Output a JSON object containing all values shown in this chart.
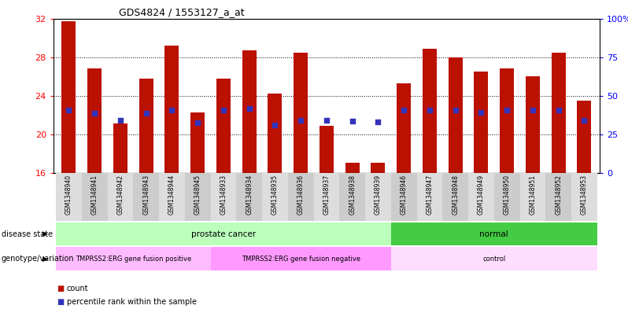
{
  "title": "GDS4824 / 1553127_a_at",
  "samples": [
    "GSM1348940",
    "GSM1348941",
    "GSM1348942",
    "GSM1348943",
    "GSM1348944",
    "GSM1348945",
    "GSM1348933",
    "GSM1348934",
    "GSM1348935",
    "GSM1348936",
    "GSM1348937",
    "GSM1348938",
    "GSM1348939",
    "GSM1348946",
    "GSM1348947",
    "GSM1348948",
    "GSM1348949",
    "GSM1348950",
    "GSM1348951",
    "GSM1348952",
    "GSM1348953"
  ],
  "red_values": [
    31.7,
    26.8,
    21.1,
    25.8,
    29.2,
    22.3,
    25.8,
    28.7,
    24.2,
    28.5,
    20.9,
    17.1,
    17.1,
    25.3,
    28.9,
    28.0,
    26.5,
    26.8,
    26.0,
    28.5,
    23.5
  ],
  "blue_left_axis": [
    22.5,
    22.2,
    21.5,
    22.2,
    22.5,
    21.2,
    22.5,
    22.7,
    21.0,
    21.5,
    21.5,
    21.4,
    21.3,
    22.5,
    22.5,
    22.5,
    22.3,
    22.5,
    22.5,
    22.5,
    21.5
  ],
  "ylim_left": [
    16,
    32
  ],
  "ylim_right": [
    0,
    100
  ],
  "yticks_left": [
    16,
    20,
    24,
    28,
    32
  ],
  "yticks_right": [
    0,
    25,
    50,
    75,
    100
  ],
  "ytick_labels_right": [
    "0",
    "25",
    "50",
    "75",
    "100%"
  ],
  "bar_color": "#bb1100",
  "blue_color": "#3333bb",
  "disease_state_groups": [
    {
      "label": "prostate cancer",
      "start": 0,
      "end": 12,
      "color": "#bbffbb"
    },
    {
      "label": "normal",
      "start": 13,
      "end": 20,
      "color": "#44cc44"
    }
  ],
  "genotype_groups": [
    {
      "label": "TMPRSS2:ERG gene fusion positive",
      "start": 0,
      "end": 5,
      "color": "#ffbbff"
    },
    {
      "label": "TMPRSS2:ERG gene fusion negative",
      "start": 6,
      "end": 12,
      "color": "#ff99ff"
    },
    {
      "label": "control",
      "start": 13,
      "end": 20,
      "color": "#ffddff"
    }
  ],
  "row_labels": [
    "disease state",
    "genotype/variation"
  ],
  "legend_items": [
    {
      "label": "count",
      "color": "#bb1100"
    },
    {
      "label": "percentile rank within the sample",
      "color": "#3333bb"
    }
  ],
  "fig_width": 7.98,
  "fig_height": 3.93,
  "dpi": 100
}
